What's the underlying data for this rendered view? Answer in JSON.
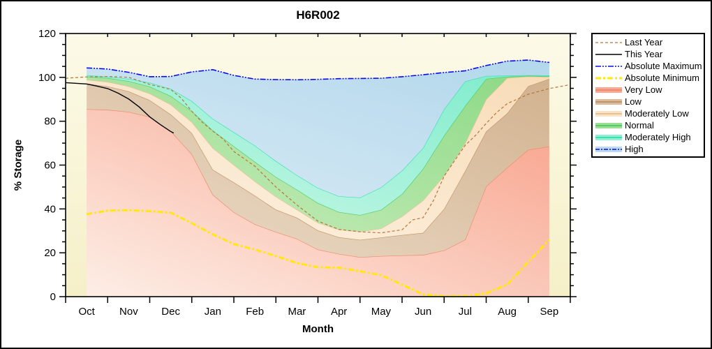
{
  "title": "H6R002",
  "x_axis": {
    "label": "Month",
    "months": [
      "Oct",
      "Nov",
      "Dec",
      "Jan",
      "Feb",
      "Mar",
      "Apr",
      "May",
      "Jun",
      "Jul",
      "Aug",
      "Sep"
    ]
  },
  "y_axis": {
    "label": "% Storage",
    "min": 0,
    "max": 120,
    "major_tick_step": 20,
    "minor_tick_step": 5,
    "tick_labels": [
      "0",
      "20",
      "40",
      "60",
      "80",
      "100",
      "120"
    ]
  },
  "legend": {
    "items": [
      {
        "label": "Last Year",
        "swatch": "line",
        "color": "#b5763b",
        "dash": "4 3",
        "width": 1.2
      },
      {
        "label": "This Year",
        "swatch": "line",
        "color": "#000000",
        "dash": "",
        "width": 1.4
      },
      {
        "label": "Absolute Maximum",
        "swatch": "line",
        "color": "#0909ee",
        "dash": "8 2 2 2 2 2",
        "width": 1.6
      },
      {
        "label": "Absolute Minimum",
        "swatch": "line",
        "color": "#ffe80a",
        "dash": "8 3 3 3",
        "width": 3
      },
      {
        "label": "Very Low",
        "swatch": "band",
        "fill": "#f8a893",
        "edge": "#ee8a6e"
      },
      {
        "label": "Low",
        "swatch": "band",
        "fill": "#d9bc9c",
        "edge": "#c09468"
      },
      {
        "label": "Moderately Low",
        "swatch": "band",
        "fill": "#fae3c5",
        "edge": "#e9c094"
      },
      {
        "label": "Normal",
        "swatch": "band",
        "fill": "#9cdf93",
        "edge": "#4ecc6c"
      },
      {
        "label": "Moderately High",
        "swatch": "band",
        "fill": "#8ff0d2",
        "edge": "#3cdfb2"
      },
      {
        "label": "High",
        "swatch": "band-line",
        "fill": "#bcdaed",
        "edge": "#0909ee"
      }
    ]
  },
  "chart_data": {
    "type": "area",
    "title": "H6R002",
    "xlabel": "Month",
    "ylabel": "% Storage",
    "ylim": [
      0,
      120
    ],
    "x_unit": "month index, 0 = Oct center ... 11 = Sep center",
    "x": [
      0,
      0.5,
      1,
      1.5,
      2,
      2.5,
      3,
      3.5,
      4,
      4.5,
      5,
      5.5,
      6,
      6.5,
      7,
      7.5,
      8,
      8.5,
      9,
      9.5,
      10,
      10.5,
      11
    ],
    "boundaries": {
      "very_low_top": [
        85.5,
        85.2,
        84.3,
        82.0,
        75.5,
        65.0,
        46.5,
        38.5,
        33.0,
        29.5,
        26.4,
        21.5,
        19.5,
        18.0,
        18.5,
        18.8,
        19.0,
        21.1,
        26.0,
        50.3,
        58.8,
        67.0,
        68.5
      ],
      "low_top": [
        97.1,
        95.9,
        93.6,
        89.6,
        83.1,
        74.6,
        57.9,
        52.1,
        46.1,
        39.7,
        36.0,
        30.2,
        27.1,
        25.9,
        27.0,
        28.1,
        29.1,
        40.0,
        57.3,
        75.3,
        83.6,
        96.0,
        99.3
      ],
      "moderately_low_top": [
        98.9,
        97.9,
        95.9,
        92.6,
        87.6,
        79.6,
        67.8,
        60.1,
        52.6,
        45.6,
        39.7,
        33.7,
        30.6,
        29.6,
        31.1,
        36.6,
        43.9,
        55.2,
        70.0,
        90.0,
        99.7,
        100.4,
        100.2
      ],
      "normal_top": [
        100.4,
        99.7,
        98.3,
        95.8,
        91.5,
        84.6,
        75.8,
        68.6,
        61.5,
        54.6,
        48.8,
        42.7,
        38.6,
        37.2,
        39.6,
        46.8,
        58.3,
        73.5,
        87.0,
        99.3,
        100.3,
        100.7,
        100.5
      ],
      "moderately_high_top": [
        101.0,
        100.3,
        99.3,
        97.6,
        94.8,
        89.2,
        81.1,
        75.0,
        68.9,
        61.8,
        55.4,
        49.6,
        45.8,
        45.2,
        49.8,
        57.5,
        67.8,
        85.5,
        98.2,
        100.6,
        100.8,
        101.0,
        100.8
      ],
      "absolute_maximum": [
        104.3,
        103.8,
        102.3,
        100.3,
        100.4,
        102.5,
        103.5,
        100.9,
        99.2,
        99.0,
        98.9,
        99.1,
        99.4,
        99.5,
        99.6,
        100.3,
        101.2,
        102.2,
        103.0,
        105.4,
        107.4,
        107.9,
        106.8
      ]
    },
    "bands": [
      {
        "name": "Very Low",
        "upper": "very_low_top",
        "fill_from": "#fdeee6",
        "fill_to": "#f8a28b",
        "edge": "#ee8a6e"
      },
      {
        "name": "Low",
        "upper": "low_top",
        "fill_from": "#ecddca",
        "fill_to": "#d2b28f",
        "edge": "#c09468"
      },
      {
        "name": "Moderately Low",
        "upper": "moderately_low_top",
        "fill_from": "#fdf2e2",
        "fill_to": "#f8dcb8",
        "edge": "#e9c094"
      },
      {
        "name": "Normal",
        "upper": "normal_top",
        "fill_from": "#c9edbc",
        "fill_to": "#8cd985",
        "edge": "#4ecc6c"
      },
      {
        "name": "Moderately High",
        "upper": "moderately_high_top",
        "fill_from": "#c9f7e7",
        "fill_to": "#7eeccb",
        "edge": "#3cdfb2"
      },
      {
        "name": "High",
        "upper": "absolute_maximum",
        "fill_from": "#d8eaf5",
        "fill_to": "#b2d7eb",
        "edge": "none"
      }
    ],
    "lines": {
      "absolute_maximum": {
        "color": "#0909ee",
        "dash": "8 2 2 2 2 2",
        "width": 1.6,
        "x": [
          0,
          0.5,
          1,
          1.5,
          2,
          2.5,
          3,
          3.5,
          4,
          4.5,
          5,
          5.5,
          6,
          6.5,
          7,
          7.5,
          8,
          8.5,
          9,
          9.5,
          10,
          10.5,
          11
        ],
        "values": [
          104.3,
          103.8,
          102.3,
          100.3,
          100.4,
          102.5,
          103.5,
          100.9,
          99.2,
          99.0,
          98.9,
          99.1,
          99.4,
          99.5,
          99.6,
          100.3,
          101.2,
          102.2,
          103.0,
          105.4,
          107.4,
          107.9,
          106.8
        ]
      },
      "absolute_minimum": {
        "color": "#ffe80a",
        "dash": "8 3 3 3",
        "width": 3,
        "x": [
          0,
          0.5,
          1,
          1.5,
          2,
          2.5,
          3,
          3.5,
          4,
          4.5,
          5,
          5.5,
          6,
          6.5,
          7,
          7.5,
          8,
          8.5,
          9,
          9.5,
          10,
          10.5,
          11
        ],
        "values": [
          37.6,
          39.2,
          39.4,
          39.0,
          38.3,
          33.5,
          28.4,
          24.0,
          21.5,
          18.5,
          15.3,
          13.4,
          13.2,
          11.6,
          9.8,
          5.5,
          1.0,
          0.2,
          0.2,
          1.5,
          5.5,
          15.8,
          26.0
        ]
      },
      "last_year": {
        "color": "#b5763b",
        "dash": "4 3",
        "width": 1.2,
        "x": [
          -0.5,
          0,
          0.5,
          1,
          1.5,
          2,
          2.25,
          2.5,
          2.75,
          3,
          3.25,
          3.5,
          4,
          4.5,
          5,
          5.5,
          6,
          6.5,
          7,
          7.5,
          7.75,
          8,
          8.25,
          8.5,
          8.75,
          9,
          9.25,
          9.5,
          9.75,
          10,
          10.5,
          11,
          11.45
        ],
        "values": [
          99.6,
          100.2,
          100.4,
          100.0,
          96.8,
          94.5,
          90.5,
          84.5,
          79.5,
          75.5,
          71.8,
          66.2,
          59.5,
          50.0,
          41.8,
          34.4,
          30.7,
          29.6,
          29.1,
          30.5,
          35.0,
          36.0,
          44.0,
          55.0,
          62.0,
          69.0,
          73.6,
          79.0,
          84.0,
          88.0,
          92.3,
          94.9,
          96.5
        ]
      },
      "this_year": {
        "color": "#000000",
        "dash": "",
        "width": 1.4,
        "x": [
          -0.5,
          0,
          0.25,
          0.5,
          0.75,
          1,
          1.25,
          1.5,
          1.75,
          2,
          2.07
        ],
        "values": [
          97.6,
          97.0,
          96.0,
          94.9,
          92.8,
          90.1,
          86.5,
          82.0,
          78.5,
          75.3,
          74.6
        ]
      }
    },
    "plot_background": {
      "from": "#fcfae8",
      "to": "#f5f0c8"
    }
  }
}
